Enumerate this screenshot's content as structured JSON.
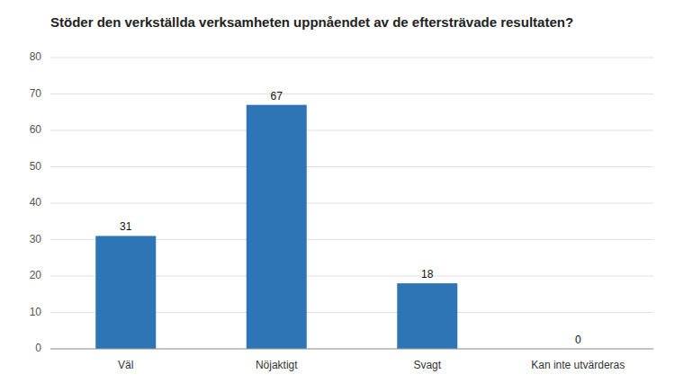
{
  "chart_data": {
    "type": "bar",
    "title": "Stöder den verkställda verksamheten uppnåendet av de eftersträvade resultaten?",
    "categories": [
      "Väl",
      "Nöjaktigt",
      "Svagt",
      "Kan inte utvärderas"
    ],
    "values": [
      31,
      67,
      18,
      0
    ],
    "color": "#2E75B6",
    "ylim": [
      0,
      80
    ],
    "yticks": [
      0,
      10,
      20,
      30,
      40,
      50,
      60,
      70,
      80
    ],
    "grid": true,
    "data_labels": true
  }
}
